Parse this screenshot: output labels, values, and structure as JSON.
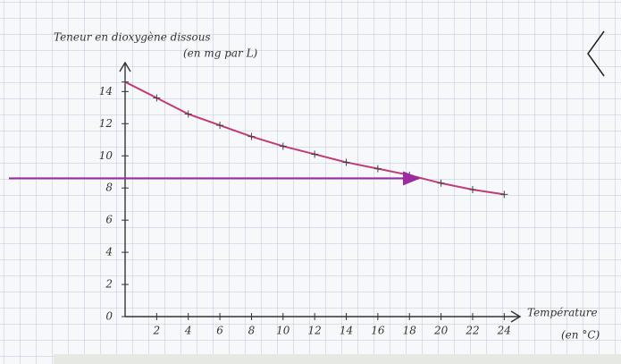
{
  "chart_data": {
    "type": "line",
    "title": [
      "Teneur en dioxygène dissous",
      "(en mg par L)"
    ],
    "xlabel": [
      "Température",
      "(en °C)"
    ],
    "x": [
      0,
      2,
      4,
      6,
      8,
      10,
      12,
      14,
      16,
      18,
      20,
      22,
      24
    ],
    "series": [
      {
        "color": "#c23a78",
        "values": [
          14.6,
          13.6,
          12.6,
          11.9,
          11.2,
          10.6,
          10.1,
          9.6,
          9.2,
          8.8,
          8.3,
          7.9,
          7.6
        ]
      }
    ],
    "xlim": [
      0,
      25
    ],
    "ylim": [
      0,
      15.8
    ],
    "xticks": [
      2,
      4,
      6,
      8,
      10,
      12,
      14,
      16,
      18,
      20,
      22,
      24
    ],
    "yticks": [
      0,
      2,
      4,
      6,
      8,
      10,
      12,
      14
    ],
    "reference_arrow": {
      "y": 8.6,
      "x_end": 18.6,
      "color": "#9b2aa3"
    },
    "grid": true
  }
}
